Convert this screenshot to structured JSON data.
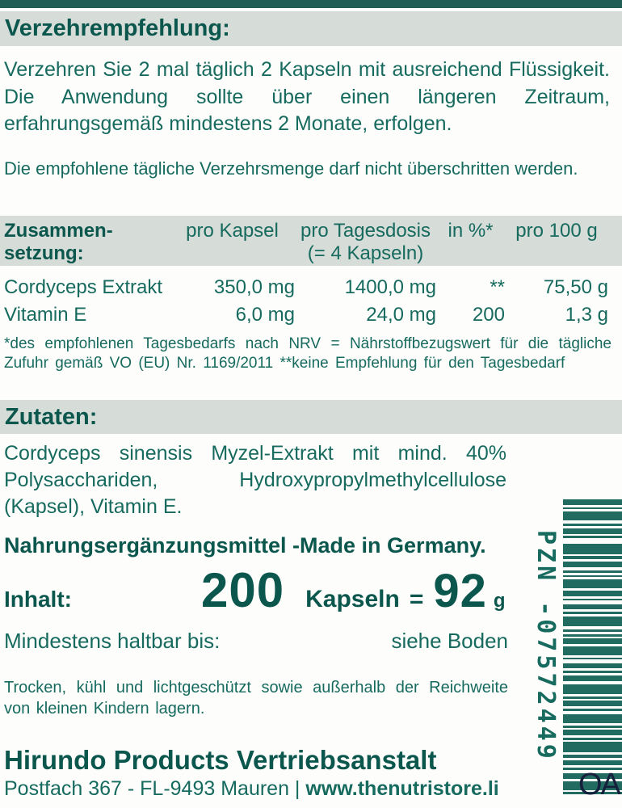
{
  "colors": {
    "top_bar": "#215e56",
    "band_gray": "#d6dcd7",
    "heading_teal": "#0b574d",
    "text_teal": "#166a5e",
    "barcode_teal": "#226b60",
    "corner_mark_navy": "#15203c",
    "background": "#fdfdfc"
  },
  "dosage": {
    "heading": "Verzehrempfehlung:",
    "paragraph": "Verzehren Sie 2 mal täglich 2 Kapseln mit ausreichend Flüssigkeit. Die Anwendung sollte über einen längeren Zeitraum, erfahrungsgemäß mindestens 2 Monate, erfolgen.",
    "note": "Die empfohlene tägliche Verzehrsmenge darf nicht überschritten werden."
  },
  "composition": {
    "title_line1": "Zusammen-",
    "title_line2": "setzung:",
    "columns": {
      "per_capsule": "pro Kapsel",
      "per_day_line1": "pro Tagesdosis",
      "per_day_line2": "(= 4 Kapseln)",
      "percent": "in %*",
      "per_100g": "pro 100 g"
    },
    "rows": [
      {
        "name": "Cordyceps Extrakt",
        "per_capsule": "350,0 mg",
        "per_day": "1400,0 mg",
        "percent": "**",
        "per_100g": "75,50 g"
      },
      {
        "name": "Vitamin E",
        "per_capsule": "6,0 mg",
        "per_day": "24,0 mg",
        "percent": "200",
        "per_100g": "1,3 g"
      }
    ],
    "footnote": "*des empfohlenen Tagesbedarfs nach NRV = Nährstoffbezugswert für die tägliche Zufuhr gemäß VO (EU) Nr. 1169/2011 **keine Empfehlung für den Tagesbedarf"
  },
  "ingredients": {
    "heading": "Zutaten:",
    "text": "Cordyceps sinensis Myzel-Extrakt mit mind. 40% Polysacchariden, Hydroxypropylmethylcellulose (Kapsel), Vitamin E."
  },
  "product": {
    "type_line": "Nahrungsergänzungsmittel -Made in Germany.",
    "content_label": "Inhalt:",
    "count": "200",
    "count_unit": "Kapseln",
    "equals": "=",
    "weight": "92",
    "weight_unit": "g",
    "bbd_label": "Mindestens haltbar bis:",
    "bbd_value": "siehe Boden",
    "storage": "Trocken, kühl und lichtgeschützt sowie außerhalb der Reichweite von kleinen Kindern lagern."
  },
  "footer": {
    "company": "Hirundo Products Vertriebsanstalt",
    "address_prefix": "Postfach 367 - FL-9493 Mauren | ",
    "website": "www.thenutristore.li"
  },
  "barcode": {
    "pzn": "PZN -07572449",
    "corner_mark": "OA",
    "pattern": [
      5,
      2,
      2,
      2,
      8,
      3,
      2,
      2,
      5,
      2,
      2,
      5,
      9,
      2,
      3,
      2,
      5,
      3,
      2,
      2,
      2,
      2,
      8,
      2,
      5,
      2,
      2,
      3,
      5,
      2,
      2,
      2,
      9,
      3,
      2,
      2,
      2,
      2,
      5,
      2,
      8,
      2,
      2,
      3,
      5,
      2,
      2,
      2,
      5,
      3,
      9,
      2,
      2,
      2,
      5,
      2,
      2,
      3,
      8,
      2,
      2,
      2,
      5,
      2,
      2,
      2,
      9,
      2,
      3,
      2,
      5,
      2,
      2,
      3,
      5,
      2,
      8,
      2,
      2,
      2
    ]
  }
}
